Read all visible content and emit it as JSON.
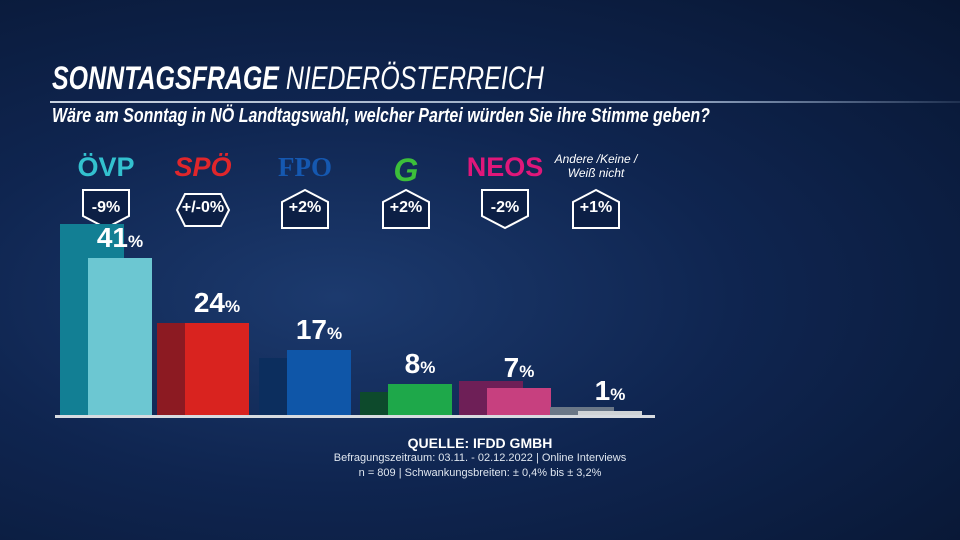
{
  "header": {
    "title_bold": "SONNTAGSFRAGE",
    "title_light": "NIEDERÖSTERREICH",
    "subtitle": "Wäre am Sonntag in NÖ Landtagswahl, welcher Partei würden Sie ihre Stimme geben?"
  },
  "chart_data": {
    "type": "bar",
    "categories": [
      "ÖVP",
      "SPÖ",
      "FPÖ",
      "Grüne",
      "NEOS",
      "Andere / Keine / Weiß nicht"
    ],
    "logo_text": [
      "ÖVP",
      "SPÖ",
      "FPO",
      "G",
      "NEOS",
      "Andere /Keine / Weiß nicht"
    ],
    "series": [
      {
        "values": [
          50,
          24,
          15,
          6,
          9,
          0
        ]
      },
      {
        "values": [
          41,
          24,
          17,
          8,
          7,
          1
        ]
      }
    ],
    "value_labels": [
      "41",
      "24",
      "17",
      "8",
      "7",
      "1"
    ],
    "unit": "%",
    "changes": [
      "-9%",
      "+/-0%",
      "+2%",
      "+2%",
      "-2%",
      "+1%"
    ],
    "colors_current": [
      "#6cc7d2",
      "#d9231f",
      "#0f56a8",
      "#1ea84a",
      "#c7407f",
      "#cfd3d6"
    ],
    "colors_previous": [
      "#127f94",
      "#8c1a22",
      "#0c2e5e",
      "#0d4a2c",
      "#6e1f57",
      "#6a7787"
    ],
    "logo_colors": [
      "#33c1cf",
      "#e0262b",
      "#1558b0",
      "#3cbf3a",
      "#e0177a",
      "#ffffff"
    ],
    "ylim": [
      0,
      50
    ],
    "grid": false
  },
  "source": {
    "line1": "QUELLE:  IFDD GMBH",
    "line2": "Befragungszeitraum: 03.11. - 02.12.2022 | Online Interviews",
    "line3": "n = 809 |  Schwankungsbreiten: ± 0,4%  bis  ± 3,2%"
  }
}
